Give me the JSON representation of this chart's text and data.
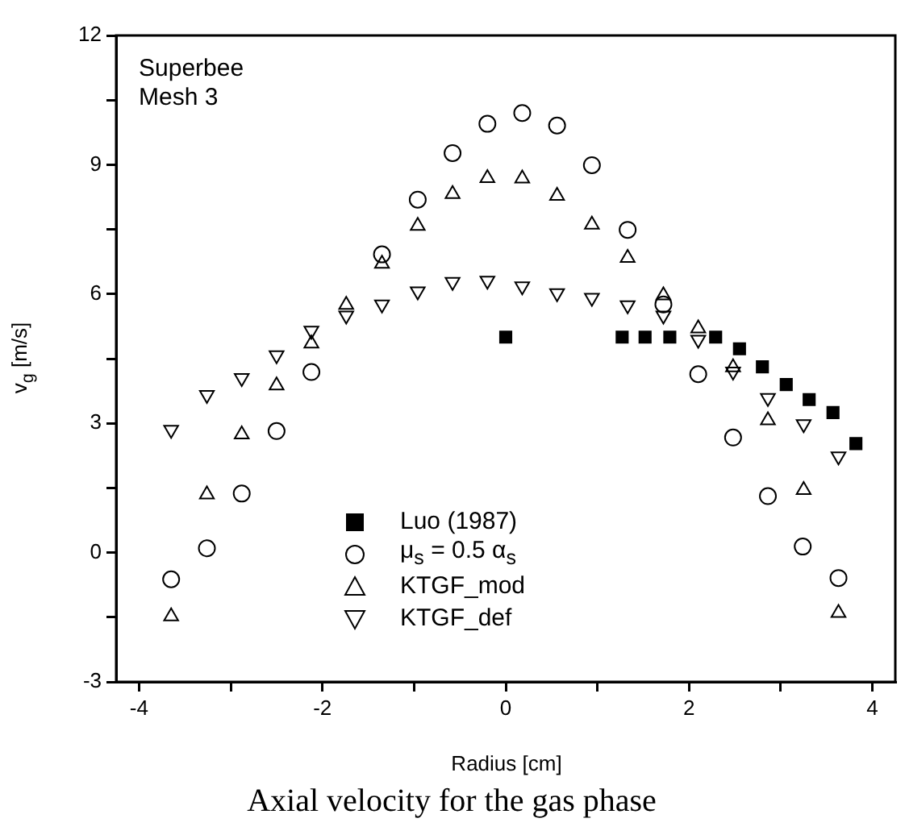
{
  "chart_data": {
    "type": "scatter",
    "title": "Axial velocity for the gas phase",
    "xlabel": "Radius [cm]",
    "ylabel": "v$_{g}$ [m/s]",
    "annotations": [
      "Superbee",
      "Mesh 3"
    ],
    "xlim": [
      -4.25,
      4.25
    ],
    "xticks": [
      -4,
      {
        "value": -3,
        "label": null
      },
      -2,
      {
        "value": -1,
        "label": null
      },
      0,
      {
        "value": 1,
        "label": null
      },
      2,
      {
        "value": 3,
        "label": null
      },
      4
    ],
    "ylim": [
      -3,
      12
    ],
    "yticks": [
      -3,
      {
        "value": -1.5,
        "label": null
      },
      0,
      {
        "value": 1.5,
        "label": null
      },
      3,
      {
        "value": 4.5,
        "label": null
      },
      6,
      {
        "value": 7.5,
        "label": null
      },
      9,
      {
        "value": 10.5,
        "label": null
      },
      12
    ],
    "grid": false,
    "legend": "bottom",
    "series": [
      {
        "name": "Luo (1987)",
        "color": "#000000",
        "marker": "square",
        "x": [
          0,
          1.27,
          1.52,
          1.79,
          2.29,
          2.55,
          2.8,
          3.06,
          3.31,
          3.57,
          3.82
        ],
        "values": [
          5.0,
          5.0,
          5.0,
          5.0,
          5.0,
          4.73,
          4.31,
          3.9,
          3.55,
          3.25,
          2.53
        ]
      },
      {
        "name": "μ$_{s}$ = 0.5 α$_{s}$",
        "color": "#000000",
        "marker": "circle",
        "x": [
          -3.65,
          -3.26,
          -2.88,
          -2.5,
          -2.12,
          -1.35,
          -0.96,
          -0.58,
          -0.2,
          0.18,
          0.56,
          0.94,
          1.33,
          1.72,
          2.1,
          2.48,
          2.86,
          3.24,
          3.63
        ],
        "values": [
          -0.62,
          0.1,
          1.37,
          2.82,
          4.19,
          6.92,
          8.19,
          9.27,
          9.95,
          10.2,
          9.91,
          8.99,
          7.49,
          5.76,
          4.14,
          2.67,
          1.31,
          0.14,
          -0.59
        ]
      },
      {
        "name": "KTGF_mod",
        "color": "#000000",
        "marker": "triangle",
        "x": [
          -3.65,
          -3.26,
          -2.88,
          -2.5,
          -2.12,
          -1.74,
          -1.35,
          -0.96,
          -0.58,
          -0.2,
          0.18,
          0.56,
          0.94,
          1.33,
          1.72,
          2.1,
          2.48,
          2.86,
          3.25,
          3.63
        ],
        "values": [
          -1.48,
          1.35,
          2.74,
          3.88,
          4.85,
          5.75,
          6.7,
          7.58,
          8.32,
          8.69,
          8.68,
          8.28,
          7.61,
          6.84,
          5.97,
          5.2,
          4.3,
          3.07,
          1.45,
          -1.4
        ]
      },
      {
        "name": "KTGF_def",
        "color": "#000000",
        "marker": "triangle-down",
        "x": [
          -3.65,
          -3.26,
          -2.88,
          -2.5,
          -2.12,
          -1.74,
          -1.35,
          -0.96,
          -0.58,
          -0.2,
          0.18,
          0.56,
          0.94,
          1.33,
          1.72,
          2.1,
          2.48,
          2.86,
          3.25,
          3.63
        ],
        "values": [
          2.85,
          3.66,
          4.05,
          4.58,
          5.15,
          5.5,
          5.76,
          6.06,
          6.28,
          6.31,
          6.18,
          6.02,
          5.91,
          5.74,
          5.5,
          4.94,
          4.2,
          3.59,
          2.98,
          2.23
        ]
      }
    ]
  }
}
